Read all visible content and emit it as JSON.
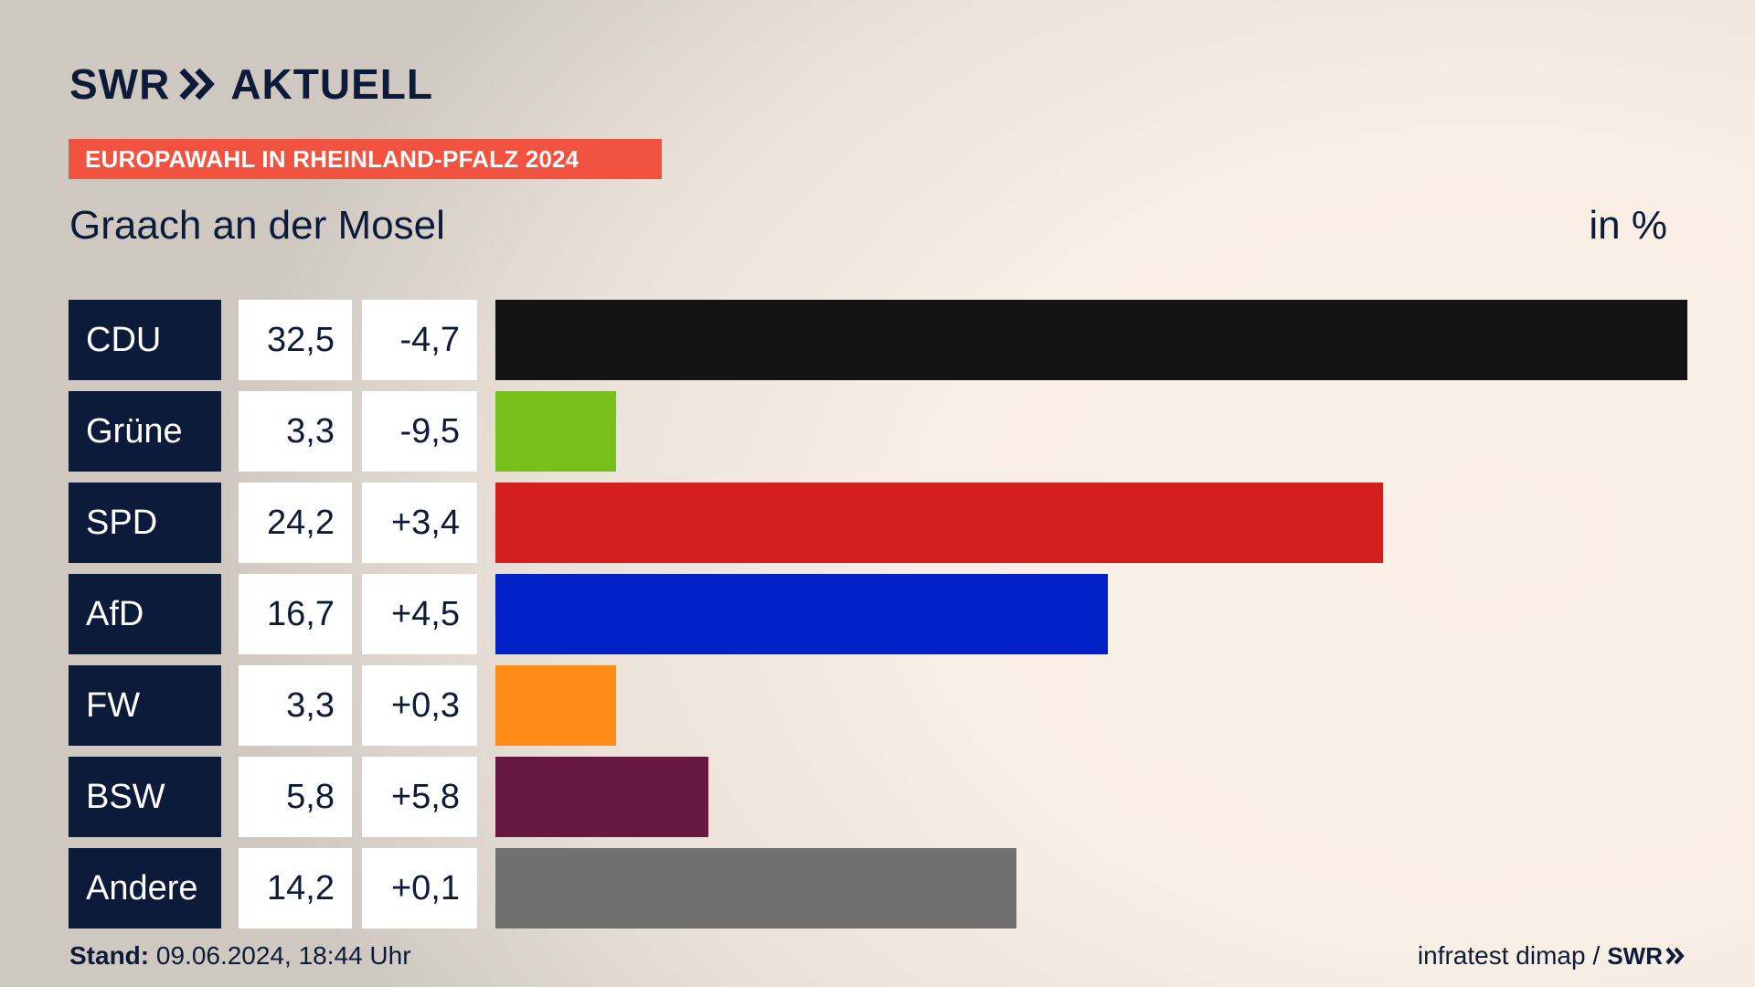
{
  "brand": {
    "swr": "SWR",
    "aktuell": "AKTUELL"
  },
  "banner": "EUROPAWAHL IN RHEINLAND-PFALZ 2024",
  "subtitle": "Graach an der Mosel",
  "unit": "in %",
  "footer": {
    "stand_label": "Stand:",
    "stand_value": "09.06.2024, 18:44 Uhr",
    "source": "infratest dimap",
    "separator": "/",
    "brand": "SWR"
  },
  "colors": {
    "navy": "#0d1b3a",
    "banner": "#f25240"
  },
  "chart_data": {
    "type": "bar",
    "orientation": "horizontal",
    "categories": [
      "CDU",
      "Grüne",
      "SPD",
      "AfD",
      "FW",
      "BSW",
      "Andere"
    ],
    "values": [
      32.5,
      3.3,
      24.2,
      16.7,
      3.3,
      5.8,
      14.2
    ],
    "value_labels": [
      "32,5",
      "3,3",
      "24,2",
      "16,7",
      "3,3",
      "5,8",
      "14,2"
    ],
    "diff_labels": [
      "-4,7",
      "-9,5",
      "+3,4",
      "+4,5",
      "+0,3",
      "+5,8",
      "+0,1"
    ],
    "diffs": [
      -4.7,
      -9.5,
      3.4,
      4.5,
      0.3,
      5.8,
      0.1
    ],
    "bar_colors": [
      "#141414",
      "#79bf1c",
      "#d41f1f",
      "#0021c7",
      "#ff8c17",
      "#66183f",
      "#707070"
    ],
    "xlim": [
      0,
      32.5
    ],
    "ylabel": "",
    "xlabel": "",
    "grid": false,
    "legend": "none"
  }
}
